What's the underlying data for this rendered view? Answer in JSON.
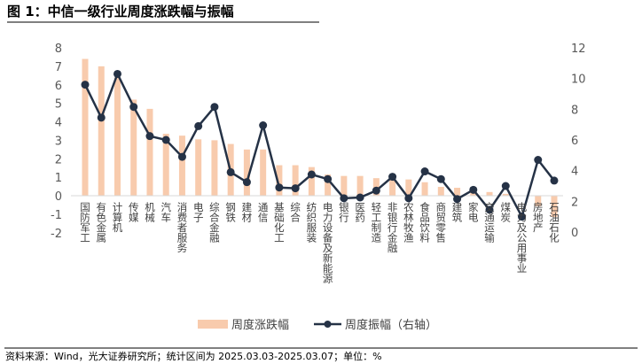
{
  "title": "图 1：中信一级行业周度涨跌幅与振幅",
  "footer": "资料来源：Wind，光大证券研究所；统计区间为 2025.03.03-2025.03.07；单位：%",
  "chart_data": {
    "type": "bar+line",
    "title": "图 1：中信一级行业周度涨跌幅与振幅",
    "categories": [
      "国防军工",
      "有色金属",
      "计算机",
      "传媒",
      "机械",
      "汽车",
      "消费者服务",
      "电子",
      "综合金融",
      "钢铁",
      "建材",
      "通信",
      "基础化工",
      "综合",
      "纺织服装",
      "电力设备及新能源",
      "银行",
      "医药",
      "轻工制造",
      "非银行金融",
      "农林牧渔",
      "食品饮料",
      "商贸零售",
      "建筑",
      "家电",
      "交通运输",
      "煤炭",
      "电力及公用事业",
      "房地产",
      "石油石化"
    ],
    "series": [
      {
        "name": "周度涨跌幅",
        "type": "bar",
        "axis": "left",
        "color": "#F8CBAD",
        "values": [
          7.4,
          7.0,
          6.4,
          5.2,
          4.7,
          3.35,
          3.25,
          3.05,
          3.0,
          2.8,
          2.5,
          2.5,
          1.65,
          1.65,
          1.55,
          1.15,
          1.07,
          1.07,
          0.95,
          0.9,
          0.88,
          0.73,
          0.48,
          0.43,
          0.3,
          0.2,
          0.1,
          0.0,
          -0.57,
          -1.15
        ]
      },
      {
        "name": "周度振幅（右轴）",
        "type": "line",
        "axis": "right",
        "color": "#253246",
        "values": [
          9.6,
          7.45,
          10.3,
          8.15,
          6.25,
          6.0,
          4.9,
          6.9,
          8.15,
          3.9,
          3.25,
          6.95,
          2.9,
          2.85,
          3.75,
          3.45,
          2.2,
          2.25,
          2.7,
          3.6,
          2.2,
          3.95,
          3.45,
          2.15,
          2.75,
          1.45,
          3.0,
          1.0,
          4.7,
          3.35
        ]
      }
    ],
    "left_axis": {
      "ylim": [
        -2,
        8
      ],
      "ticks": [
        -2,
        -1,
        0,
        1,
        2,
        3,
        4,
        5,
        6,
        7,
        8
      ]
    },
    "right_axis": {
      "ylim": [
        0,
        12
      ],
      "ticks": [
        0,
        2,
        4,
        6,
        8,
        10,
        12
      ]
    },
    "grid": false,
    "legend_position": "bottom"
  }
}
